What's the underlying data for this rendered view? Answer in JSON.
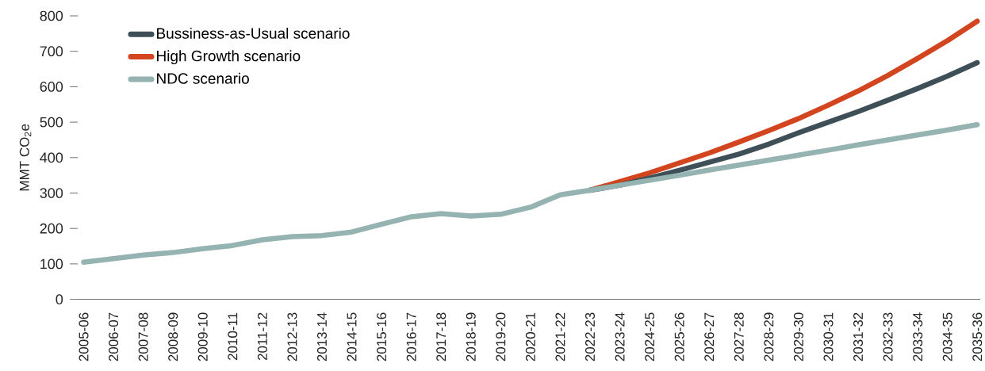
{
  "chart_data": {
    "type": "line",
    "ylabel": "MMT CO$_{2}$e",
    "categories": [
      "2005-06",
      "2006-07",
      "2007-08",
      "2008-09",
      "2009-10",
      "2010-11",
      "2011-12",
      "2012-13",
      "2013-14",
      "2014-15",
      "2015-16",
      "2016-17",
      "2017-18",
      "2018-19",
      "2019-20",
      "2020-21",
      "2021-22",
      "2022-23",
      "2023-24",
      "2024-25",
      "2025-26",
      "2026-27",
      "2027-28",
      "2028-29",
      "2029-30",
      "2030-31",
      "2031-32",
      "2032-33",
      "2033-34",
      "2034-35",
      "2035-36"
    ],
    "series": [
      {
        "name": "Bussiness-as-Usual scenario",
        "color": "#3f4f58",
        "values": [
          null,
          null,
          null,
          null,
          null,
          null,
          null,
          null,
          null,
          null,
          null,
          null,
          null,
          null,
          null,
          null,
          null,
          308,
          322,
          342,
          364,
          387,
          410,
          438,
          470,
          500,
          530,
          562,
          595,
          630,
          668
        ]
      },
      {
        "name": "High Growth scenario",
        "color": "#d2451e",
        "values": [
          null,
          null,
          null,
          null,
          null,
          null,
          null,
          null,
          null,
          null,
          null,
          null,
          null,
          null,
          null,
          null,
          null,
          308,
          332,
          357,
          385,
          413,
          444,
          476,
          510,
          548,
          588,
          632,
          680,
          730,
          785
        ]
      },
      {
        "name": "NDC scenario",
        "color": "#94b3b1",
        "values": [
          105,
          115,
          125,
          132,
          143,
          152,
          168,
          177,
          180,
          190,
          212,
          233,
          242,
          235,
          240,
          260,
          295,
          308,
          322,
          336,
          350,
          365,
          379,
          393,
          407,
          421,
          436,
          450,
          464,
          478,
          493
        ]
      }
    ],
    "ylim": [
      0,
      800
    ],
    "yticks": [
      0,
      100,
      200,
      300,
      400,
      500,
      600,
      700,
      800
    ],
    "legend": "top left",
    "marker": "none",
    "line_style": "solid"
  }
}
